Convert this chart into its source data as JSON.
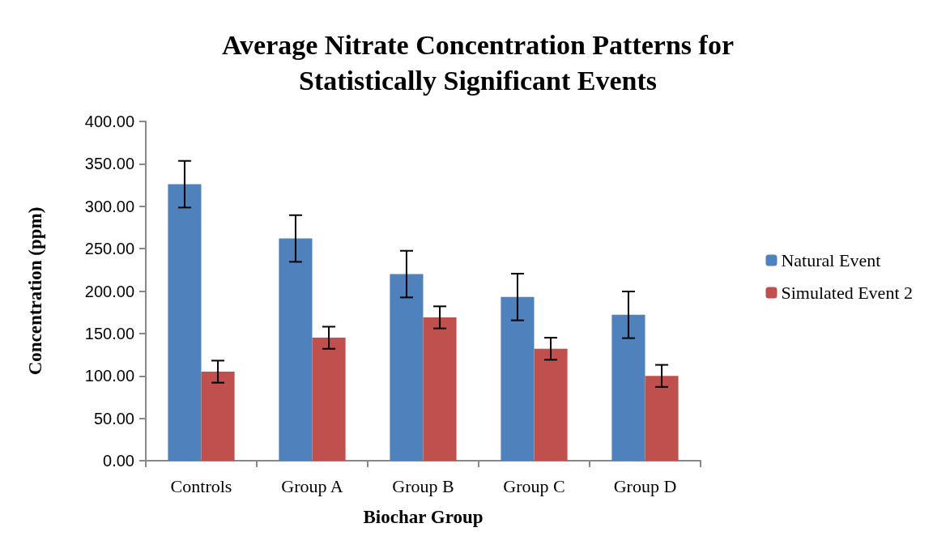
{
  "chart_data": {
    "type": "bar",
    "title": "Average Nitrate Concentration Patterns for\nStatistically Significant Events",
    "xlabel": "Biochar Group",
    "ylabel": "Concentration (ppm)",
    "categories": [
      "Controls",
      "Group A",
      "Group B",
      "Group C",
      "Group D"
    ],
    "series": [
      {
        "name": "Natural Event",
        "color": "#4f81bd",
        "values": [
          326,
          262,
          220,
          193,
          172
        ],
        "errors": [
          27.5,
          27.5,
          27.5,
          27.5,
          27.5
        ]
      },
      {
        "name": "Simulated Event 2",
        "color": "#c0504d",
        "values": [
          105,
          145,
          169,
          132,
          100
        ],
        "errors": [
          13,
          13,
          13,
          13,
          13
        ]
      }
    ],
    "ylim": [
      0,
      400
    ],
    "yticks": [
      {
        "value": 0,
        "label": "0.00"
      },
      {
        "value": 50,
        "label": "50.00"
      },
      {
        "value": 100,
        "label": "100.00"
      },
      {
        "value": 150,
        "label": "150.00"
      },
      {
        "value": 200,
        "label": "200.00"
      },
      {
        "value": 250,
        "label": "250.00"
      },
      {
        "value": 300,
        "label": "300.00"
      },
      {
        "value": 350,
        "label": "350.00"
      },
      {
        "value": 400,
        "label": "400.00"
      }
    ],
    "grid": false,
    "legend": "right"
  }
}
